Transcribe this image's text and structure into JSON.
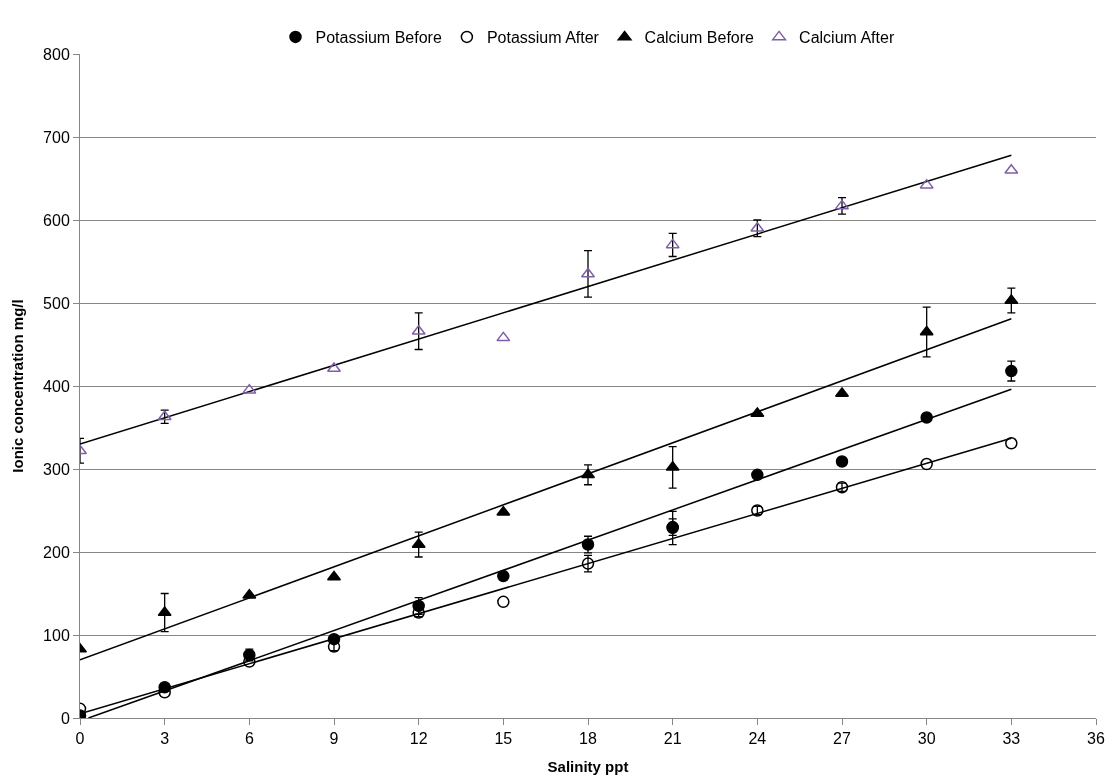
{
  "chart_data": {
    "type": "scatter",
    "xlabel": "Salinity ppt",
    "ylabel": "Ionic concentration mg/l",
    "x": [
      0,
      3,
      6,
      9,
      12,
      15,
      18,
      21,
      24,
      27,
      30,
      33
    ],
    "xlim": [
      0,
      36
    ],
    "xticks": [
      0,
      3,
      6,
      9,
      12,
      15,
      18,
      21,
      24,
      27,
      30,
      33,
      36
    ],
    "ylim": [
      0,
      800
    ],
    "yticks": [
      0,
      100,
      200,
      300,
      400,
      500,
      600,
      700,
      800
    ],
    "grid": "y",
    "legend": "top",
    "series": [
      {
        "name": "Potassium Before",
        "color": "#000000",
        "marker": "circle",
        "values": [
          3,
          37,
          76,
          95,
          135,
          171,
          209,
          229,
          293,
          309,
          362,
          418
        ],
        "errors": [
          null,
          null,
          7,
          null,
          10,
          null,
          10,
          20,
          null,
          null,
          null,
          12
        ]
      },
      {
        "name": "Potassium After",
        "color": "#000000",
        "marker": "circle-open",
        "values": [
          11,
          31,
          68,
          86,
          127,
          140,
          186,
          230,
          250,
          278,
          306,
          331
        ],
        "errors": [
          null,
          null,
          null,
          5,
          5,
          null,
          10,
          10,
          5,
          5,
          null,
          null
        ]
      },
      {
        "name": "Calcium Before",
        "color": "#000000",
        "marker": "triangle",
        "values": [
          83,
          127,
          148,
          170,
          209,
          248,
          293,
          302,
          367,
          391,
          465,
          503
        ],
        "errors": [
          null,
          23,
          null,
          null,
          15,
          null,
          12,
          25,
          null,
          null,
          30,
          15
        ]
      },
      {
        "name": "Calcium After",
        "color": "#7f5fa8",
        "marker": "triangle-open",
        "values": [
          322,
          363,
          395,
          421,
          466,
          458,
          535,
          570,
          590,
          617,
          642,
          660
        ],
        "errors": [
          15,
          8,
          null,
          null,
          22,
          null,
          28,
          14,
          10,
          10,
          null,
          null
        ]
      },
      {
        "type": "line",
        "color": "#000000",
        "x": [
          0.3,
          33
        ],
        "values": [
          0,
          396
        ]
      },
      {
        "type": "line",
        "color": "#000000",
        "x": [
          0,
          33
        ],
        "values": [
          5,
          337
        ]
      },
      {
        "type": "line",
        "color": "#000000",
        "x": [
          0,
          33
        ],
        "values": [
          70,
          481
        ]
      },
      {
        "type": "line",
        "color": "#000000",
        "x": [
          0,
          33
        ],
        "values": [
          330,
          678
        ]
      }
    ]
  }
}
